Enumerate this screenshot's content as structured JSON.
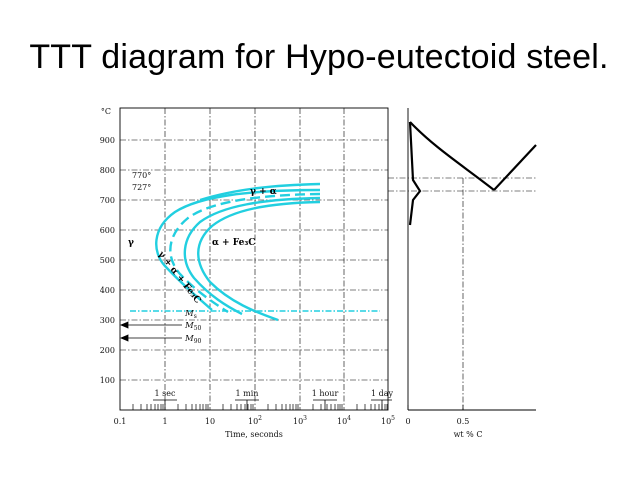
{
  "slide": {
    "title": "TTT diagram for Hypo-eutectoid steel."
  },
  "ttt": {
    "temp_unit": "°C",
    "temp_ticks": [
      "900",
      "800",
      "700",
      "600",
      "500",
      "400",
      "300",
      "200",
      "100"
    ],
    "time_ticks": [
      "0.1",
      "1",
      "10",
      "10",
      "10",
      "10",
      "10"
    ],
    "time_exponents": [
      "",
      "",
      "",
      "2",
      "3",
      "4",
      "5"
    ],
    "xlabel": "Time, seconds",
    "time_markers": [
      "1 sec",
      "1 min",
      "1 hour",
      "1 day"
    ],
    "temp_770": "770°",
    "temp_727": "727°",
    "region_gamma": "γ",
    "region_gamma_alpha": "γ + α",
    "region_alpha_fe3c": "α + Fe₃C",
    "region_gamma_alpha_fe3c": "γ + α + Fe₃C",
    "ms": "M",
    "ms_sub": "s",
    "m50": "M",
    "m50_sub": "50",
    "m90": "M",
    "m90_sub": "90"
  },
  "phase": {
    "x_ticks": [
      "0",
      "0.5"
    ],
    "xlabel": "wt % C"
  },
  "colors": {
    "curve": "#22cfe0",
    "ink": "#000000"
  }
}
